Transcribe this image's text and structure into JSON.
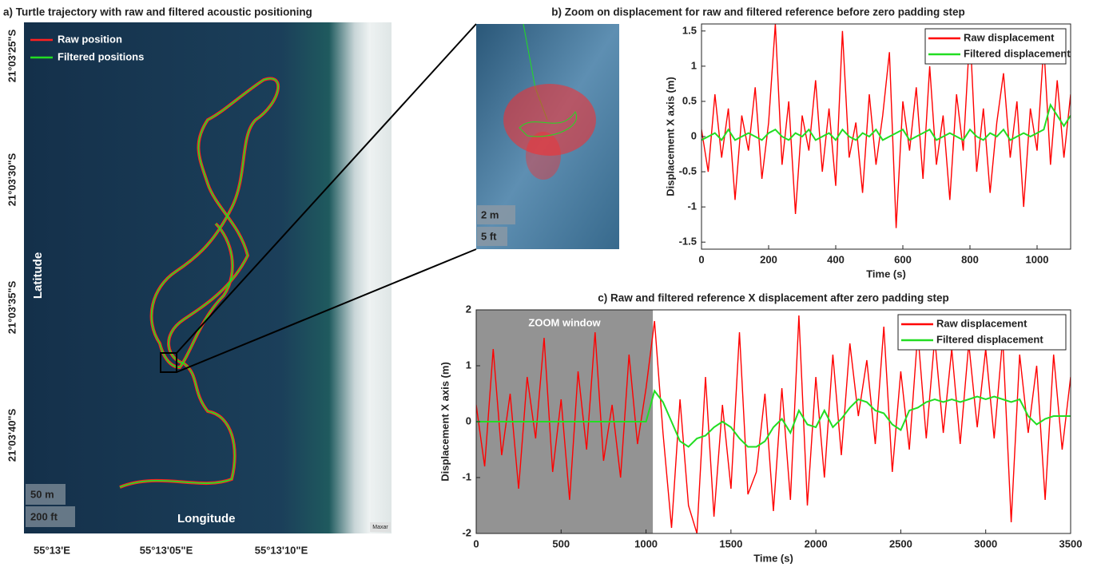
{
  "chart_data": [
    {
      "type": "map",
      "title": "a) Turtle trajectory with raw and filtered acoustic positioning",
      "xlabel": "Longitude",
      "ylabel": "Latitude",
      "xtick_labels": [
        "55°13'E",
        "55°13'05\"E",
        "55°13'10\"E"
      ],
      "ytick_labels": [
        "21°03'25\"S",
        "21°03'30\"S",
        "21°03'35\"S",
        "21°03'40\"S"
      ],
      "series": [
        {
          "name": "Raw position",
          "color": "#ff2020"
        },
        {
          "name": "Filtered positions",
          "color": "#22dd22"
        }
      ],
      "scale_labels": [
        "50 m",
        "200 ft"
      ],
      "zoom_scale_labels": [
        "2 m",
        "5 ft"
      ],
      "credit": "Maxar"
    },
    {
      "type": "line",
      "title": "b) Zoom on displacement for raw and filtered reference before zero padding step",
      "xlabel": "Time (s)",
      "ylabel": "Displacement X axis (m)",
      "x": [
        0,
        20,
        40,
        60,
        80,
        100,
        120,
        140,
        160,
        180,
        200,
        220,
        240,
        260,
        280,
        300,
        320,
        340,
        360,
        380,
        400,
        420,
        440,
        460,
        480,
        500,
        520,
        540,
        560,
        580,
        600,
        620,
        640,
        660,
        680,
        700,
        720,
        740,
        760,
        780,
        800,
        820,
        840,
        860,
        880,
        900,
        920,
        940,
        960,
        980,
        1000,
        1020,
        1040,
        1060,
        1080,
        1100
      ],
      "series": [
        {
          "name": "Raw displacement",
          "color": "#ff0000",
          "values": [
            0.1,
            -0.5,
            0.6,
            -0.3,
            0.4,
            -0.9,
            0.3,
            -0.2,
            0.7,
            -0.6,
            0.2,
            1.6,
            -0.4,
            0.5,
            -1.1,
            0.3,
            -0.2,
            0.8,
            -0.5,
            0.4,
            -0.7,
            1.5,
            -0.3,
            0.2,
            -0.8,
            0.6,
            -0.4,
            0.3,
            1.2,
            -1.3,
            0.5,
            -0.2,
            0.7,
            -0.6,
            1.0,
            -0.4,
            0.3,
            -0.9,
            0.6,
            -0.2,
            1.5,
            -0.5,
            0.4,
            -0.8,
            0.2,
            0.9,
            -0.3,
            0.5,
            -1.0,
            0.4,
            -0.2,
            1.3,
            -0.4,
            0.8,
            -0.3,
            0.6
          ]
        },
        {
          "name": "Filtered displacement",
          "color": "#22dd22",
          "values": [
            -0.05,
            0.0,
            0.05,
            -0.05,
            0.1,
            -0.05,
            0.0,
            0.05,
            0.0,
            -0.05,
            0.05,
            0.1,
            0.0,
            -0.05,
            0.05,
            0.0,
            0.1,
            -0.05,
            0.0,
            0.05,
            -0.05,
            0.1,
            0.0,
            -0.05,
            0.05,
            0.0,
            0.1,
            -0.05,
            0.0,
            0.05,
            0.1,
            -0.05,
            0.0,
            0.05,
            0.1,
            -0.05,
            0.0,
            0.05,
            0.0,
            -0.05,
            0.1,
            0.0,
            -0.05,
            0.05,
            0.0,
            0.1,
            -0.05,
            0.0,
            0.05,
            0.0,
            0.05,
            0.1,
            0.45,
            0.3,
            0.15,
            0.3
          ]
        }
      ],
      "xlim": [
        0,
        1100
      ],
      "xticks": [
        0,
        200,
        400,
        600,
        800,
        1000
      ],
      "ylim": [
        -1.6,
        1.6
      ],
      "yticks": [
        -1.5,
        -1,
        -0.5,
        0,
        0.5,
        1,
        1.5
      ],
      "grid": false,
      "legend": "upper right"
    },
    {
      "type": "line",
      "title": "c) Raw and filtered reference X displacement after zero padding step",
      "xlabel": "Time (s)",
      "ylabel": "Displacement X axis (m)",
      "annotation": "ZOOM window",
      "zoom_window": [
        0,
        1040
      ],
      "x": [
        0,
        50,
        100,
        150,
        200,
        250,
        300,
        350,
        400,
        450,
        500,
        550,
        600,
        650,
        700,
        750,
        800,
        850,
        900,
        950,
        1000,
        1050,
        1100,
        1150,
        1200,
        1250,
        1300,
        1350,
        1400,
        1450,
        1500,
        1550,
        1600,
        1650,
        1700,
        1750,
        1800,
        1850,
        1900,
        1950,
        2000,
        2050,
        2100,
        2150,
        2200,
        2250,
        2300,
        2350,
        2400,
        2450,
        2500,
        2550,
        2600,
        2650,
        2700,
        2750,
        2800,
        2850,
        2900,
        2950,
        3000,
        3050,
        3100,
        3150,
        3200,
        3250,
        3300,
        3350,
        3400,
        3450,
        3500
      ],
      "series": [
        {
          "name": "Raw displacement",
          "color": "#ff0000",
          "values": [
            0.3,
            -0.8,
            1.3,
            -0.6,
            0.5,
            -1.2,
            0.8,
            -0.3,
            1.5,
            -0.9,
            0.4,
            -1.4,
            0.9,
            -0.5,
            1.6,
            -0.7,
            0.3,
            -1.0,
            1.2,
            -0.4,
            0.6,
            1.8,
            -0.2,
            -1.9,
            0.4,
            -1.5,
            -2.0,
            0.8,
            -1.7,
            0.3,
            -1.2,
            1.6,
            -1.3,
            -0.9,
            0.5,
            -1.6,
            0.6,
            -1.4,
            1.9,
            -1.5,
            0.8,
            -1.0,
            1.2,
            -0.6,
            1.4,
            0.1,
            1.1,
            -0.4,
            1.7,
            -0.9,
            0.9,
            -0.5,
            1.6,
            -0.3,
            1.5,
            -0.2,
            1.3,
            -0.4,
            1.4,
            -0.1,
            1.3,
            -0.3,
            1.5,
            -1.8,
            1.2,
            -0.2,
            1.0,
            -1.4,
            1.2,
            -0.5,
            0.8
          ]
        },
        {
          "name": "Filtered displacement",
          "color": "#22dd22",
          "values": [
            0,
            0,
            0,
            0,
            0,
            0,
            0,
            0,
            0,
            0,
            0,
            0,
            0,
            0,
            0,
            0,
            0,
            0,
            0,
            0,
            0,
            0.55,
            0.35,
            0.0,
            -0.35,
            -0.45,
            -0.3,
            -0.25,
            -0.1,
            0.0,
            -0.1,
            -0.3,
            -0.45,
            -0.45,
            -0.35,
            -0.1,
            0.05,
            -0.2,
            0.2,
            -0.05,
            -0.1,
            0.2,
            -0.1,
            0.05,
            0.25,
            0.4,
            0.35,
            0.2,
            0.15,
            -0.05,
            -0.15,
            0.2,
            0.25,
            0.35,
            0.4,
            0.35,
            0.4,
            0.35,
            0.4,
            0.45,
            0.4,
            0.45,
            0.4,
            0.35,
            0.4,
            0.1,
            -0.05,
            0.05,
            0.1,
            0.1,
            0.1
          ]
        }
      ],
      "xlim": [
        0,
        3500
      ],
      "xticks": [
        0,
        500,
        1000,
        1500,
        2000,
        2500,
        3000,
        3500
      ],
      "ylim": [
        -2,
        2
      ],
      "yticks": [
        -2,
        -1,
        0,
        1,
        2
      ],
      "grid": false,
      "legend": "upper right"
    }
  ]
}
